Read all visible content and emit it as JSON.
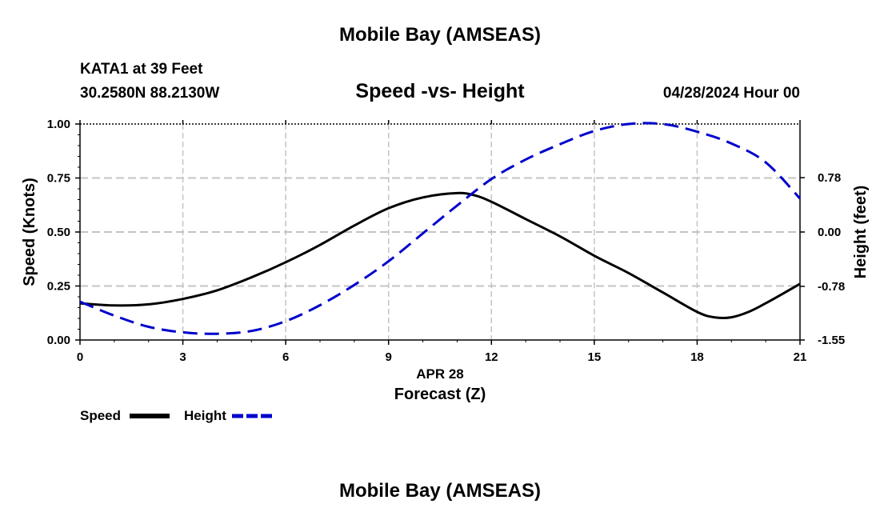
{
  "page_title": "Mobile Bay (AMSEAS)",
  "page_title_bottom": "Mobile Bay (AMSEAS)",
  "station": {
    "name": "KATA1 at 39 Feet",
    "coords": "30.2580N  88.2130W"
  },
  "run_time": "04/28/2024 Hour 00",
  "chart_data": {
    "type": "line",
    "title": "Speed -vs- Height",
    "xlabel": "Forecast (Z)",
    "xlabel_date": "APR 28",
    "ylabel": "Speed (Knots)",
    "ylabel_right": "Height (feet)",
    "xlim": [
      0,
      21
    ],
    "ylim": [
      0,
      1
    ],
    "ylim_right": [
      -1.55,
      1.55
    ],
    "x_ticks": [
      "0",
      "3",
      "6",
      "9",
      "12",
      "15",
      "18",
      "21"
    ],
    "y_ticks": [
      "0.00",
      "0.25",
      "0.50",
      "0.75",
      "1.00"
    ],
    "y_ticks_right": [
      "-1.55",
      "-0.78",
      "0.00",
      "0.78"
    ],
    "grid": true,
    "legend_position": "bottom-left",
    "series": [
      {
        "name": "Speed",
        "axis": "left",
        "color": "#000000",
        "style": "solid",
        "x": [
          0,
          1,
          2,
          3,
          4,
          5,
          6,
          7,
          8,
          9,
          10,
          11,
          11.5,
          12,
          13,
          14,
          15,
          16,
          17,
          18,
          18.5,
          19,
          19.5,
          20,
          21
        ],
        "values": [
          0.17,
          0.16,
          0.165,
          0.19,
          0.23,
          0.29,
          0.36,
          0.44,
          0.53,
          0.61,
          0.66,
          0.68,
          0.67,
          0.64,
          0.56,
          0.48,
          0.39,
          0.31,
          0.22,
          0.13,
          0.105,
          0.105,
          0.13,
          0.17,
          0.26
        ]
      },
      {
        "name": "Height",
        "axis": "right",
        "color": "#0000cc",
        "style": "dashed",
        "x": [
          0,
          1,
          2,
          3,
          4,
          5,
          6,
          7,
          8,
          9,
          10,
          11,
          12,
          13,
          14,
          15,
          16,
          17,
          18,
          19,
          20,
          21
        ],
        "values": [
          -1.0,
          -1.2,
          -1.36,
          -1.44,
          -1.46,
          -1.42,
          -1.28,
          -1.05,
          -0.76,
          -0.42,
          -0.02,
          0.38,
          0.76,
          1.04,
          1.26,
          1.45,
          1.55,
          1.55,
          1.44,
          1.27,
          1.0,
          0.48
        ]
      }
    ]
  }
}
